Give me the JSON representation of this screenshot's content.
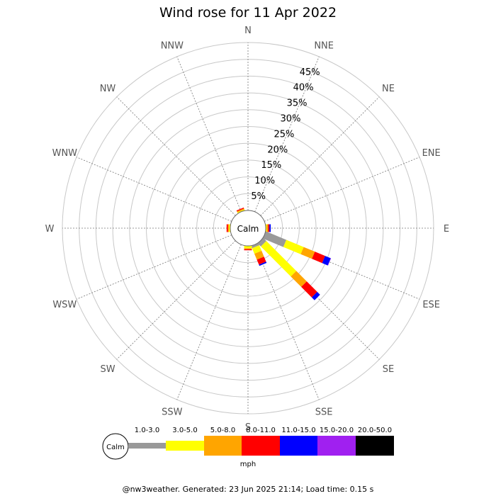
{
  "chart_data": {
    "type": "wind-rose",
    "title": "Wind rose for 11 Apr 2022",
    "directions": [
      "N",
      "NNE",
      "NE",
      "ENE",
      "E",
      "ESE",
      "SE",
      "SSE",
      "S",
      "SSW",
      "SW",
      "WSW",
      "W",
      "WNW",
      "NW",
      "NNW"
    ],
    "ring_labels": [
      "5%",
      "10%",
      "15%",
      "20%",
      "25%",
      "30%",
      "35%",
      "40%",
      "45%"
    ],
    "rmax": 50,
    "center_label": "Calm",
    "speed_bins": [
      {
        "label": "1.0-3.0",
        "color": "#999999"
      },
      {
        "label": "3.0-5.0",
        "color": "#ffff00"
      },
      {
        "label": "5.0-8.0",
        "color": "#ffa500"
      },
      {
        "label": "8.0-11.0",
        "color": "#ff0000"
      },
      {
        "label": "11.0-15.0",
        "color": "#0000ff"
      },
      {
        "label": "15.0-20.0",
        "color": "#a020f0"
      },
      {
        "label": "20.0-50.0",
        "color": "#000000"
      }
    ],
    "unit": "mph",
    "series": [
      {
        "direction": "N",
        "values": [
          0,
          0,
          0,
          0,
          0,
          0,
          0
        ]
      },
      {
        "direction": "NNE",
        "values": [
          0,
          0,
          0,
          0,
          0,
          0,
          0
        ]
      },
      {
        "direction": "NE",
        "values": [
          0,
          0,
          0,
          0,
          0,
          0,
          0
        ]
      },
      {
        "direction": "ENE",
        "values": [
          0,
          0,
          0,
          0,
          0,
          0,
          0
        ]
      },
      {
        "direction": "E",
        "values": [
          0,
          0.3,
          0.4,
          0.4,
          0.4,
          0,
          0
        ]
      },
      {
        "direction": "ESE",
        "values": [
          6.6,
          5.6,
          3.6,
          3.3,
          1.8,
          0.1,
          0
        ]
      },
      {
        "direction": "SE",
        "values": [
          1.3,
          12.6,
          4.4,
          4.4,
          1.2,
          0,
          0
        ]
      },
      {
        "direction": "SSE",
        "values": [
          0.7,
          1.8,
          1.9,
          1.6,
          0.4,
          0,
          0
        ]
      },
      {
        "direction": "S",
        "values": [
          0,
          0.7,
          0.3,
          0.3,
          0,
          0,
          0
        ]
      },
      {
        "direction": "SSW",
        "values": [
          0,
          0,
          0,
          0,
          0,
          0,
          0
        ]
      },
      {
        "direction": "SW",
        "values": [
          0,
          0,
          0,
          0,
          0,
          0,
          0
        ]
      },
      {
        "direction": "WSW",
        "values": [
          0,
          0,
          0,
          0,
          0,
          0,
          0
        ]
      },
      {
        "direction": "W",
        "values": [
          0,
          0.4,
          0.3,
          0.4,
          0,
          0,
          0
        ]
      },
      {
        "direction": "WNW",
        "values": [
          0,
          0,
          0,
          0,
          0,
          0,
          0
        ]
      },
      {
        "direction": "NW",
        "values": [
          0,
          0,
          0,
          0,
          0,
          0,
          0
        ]
      },
      {
        "direction": "NNW",
        "values": [
          0,
          0.3,
          0.3,
          0.3,
          0,
          0,
          0
        ]
      }
    ],
    "footer": "@nw3weather. Generated: 23 Jun 2025 21:14; Load time: 0.15 s"
  }
}
